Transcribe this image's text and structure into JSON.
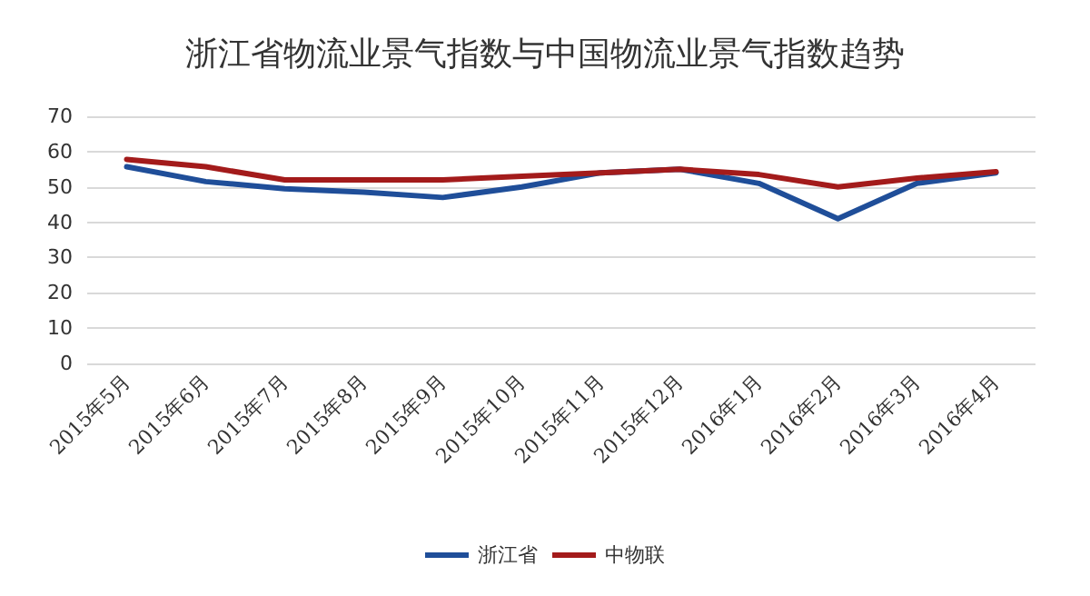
{
  "chart_data": {
    "type": "line",
    "title": "浙江省物流业景气指数与中国物流业景气指数趋势",
    "categories": [
      "2015年5月",
      "2015年6月",
      "2015年7月",
      "2015年8月",
      "2015年9月",
      "2015年10月",
      "2015年11月",
      "2015年12月",
      "2016年1月",
      "2016年2月",
      "2016年3月",
      "2016年4月"
    ],
    "series": [
      {
        "name": "浙江省",
        "color": "#1f4e99",
        "values": [
          55.7,
          51.5,
          49.5,
          48.5,
          47,
          50,
          54,
          55,
          51,
          41,
          51,
          54
        ]
      },
      {
        "name": "中物联",
        "color": "#a31b1b",
        "values": [
          57.8,
          55.7,
          52,
          52,
          52,
          53,
          54,
          55,
          53.5,
          50,
          52.5,
          54.3
        ]
      }
    ],
    "ylim": [
      0,
      70
    ],
    "yticks": [
      0,
      10,
      20,
      30,
      40,
      50,
      60,
      70
    ],
    "grid": "y",
    "legend": "bottom",
    "marker": "none",
    "line_style": "solid"
  }
}
